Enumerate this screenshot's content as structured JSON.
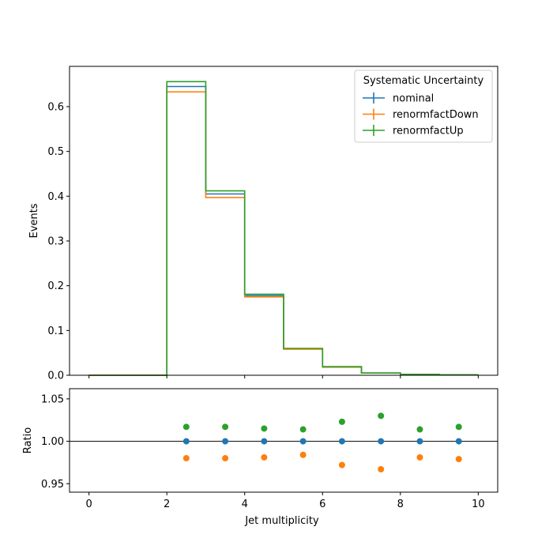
{
  "chart_data": [
    {
      "type": "step",
      "panel": "main",
      "ylabel": "Events",
      "xlim": [
        -0.5,
        10.5
      ],
      "ylim": [
        0,
        0.69
      ],
      "xticks": [
        0,
        2,
        4,
        6,
        8,
        10
      ],
      "yticks": [
        0.0,
        0.1,
        0.2,
        0.3,
        0.4,
        0.5,
        0.6
      ],
      "ytick_labels": [
        "0.0",
        "0.1",
        "0.2",
        "0.3",
        "0.4",
        "0.5",
        "0.6"
      ],
      "bin_edges": [
        0,
        1,
        2,
        3,
        4,
        5,
        6,
        7,
        8,
        9,
        10
      ],
      "legend": {
        "title": "Systematic Uncertainty",
        "placement": "upper right"
      },
      "series": [
        {
          "name": "nominal",
          "color": "#1f77b4",
          "values": [
            0,
            0,
            0.645,
            0.405,
            0.178,
            0.059,
            0.019,
            0.005,
            0.002,
            0.001
          ]
        },
        {
          "name": "renormfactDown",
          "color": "#ff7f0e",
          "values": [
            0,
            0,
            0.633,
            0.397,
            0.175,
            0.058,
            0.018,
            0.005,
            0.002,
            0.001
          ]
        },
        {
          "name": "renormfactUp",
          "color": "#2ca02c",
          "values": [
            0,
            0,
            0.656,
            0.412,
            0.181,
            0.06,
            0.019,
            0.005,
            0.002,
            0.001
          ]
        }
      ]
    },
    {
      "type": "scatter",
      "panel": "ratio",
      "xlabel": "Jet multiplicity",
      "ylabel": "Ratio",
      "xlim": [
        -0.5,
        10.5
      ],
      "ylim": [
        0.94,
        1.062
      ],
      "xticks": [
        0,
        2,
        4,
        6,
        8,
        10
      ],
      "yticks": [
        0.95,
        1.0,
        1.05
      ],
      "ytick_labels": [
        "0.95",
        "1.00",
        "1.05"
      ],
      "reference_line": 1.0,
      "x": [
        2.5,
        3.5,
        4.5,
        5.5,
        6.5,
        7.5,
        8.5,
        9.5
      ],
      "series": [
        {
          "name": "nominal",
          "color": "#1f77b4",
          "values": [
            1.0,
            1.0,
            1.0,
            1.0,
            1.0,
            1.0,
            1.0,
            1.0
          ]
        },
        {
          "name": "renormfactDown",
          "color": "#ff7f0e",
          "values": [
            0.98,
            0.98,
            0.981,
            0.984,
            0.972,
            0.967,
            0.981,
            0.979
          ]
        },
        {
          "name": "renormfactUp",
          "color": "#2ca02c",
          "values": [
            1.017,
            1.017,
            1.015,
            1.014,
            1.023,
            1.03,
            1.014,
            1.017
          ]
        }
      ]
    }
  ]
}
